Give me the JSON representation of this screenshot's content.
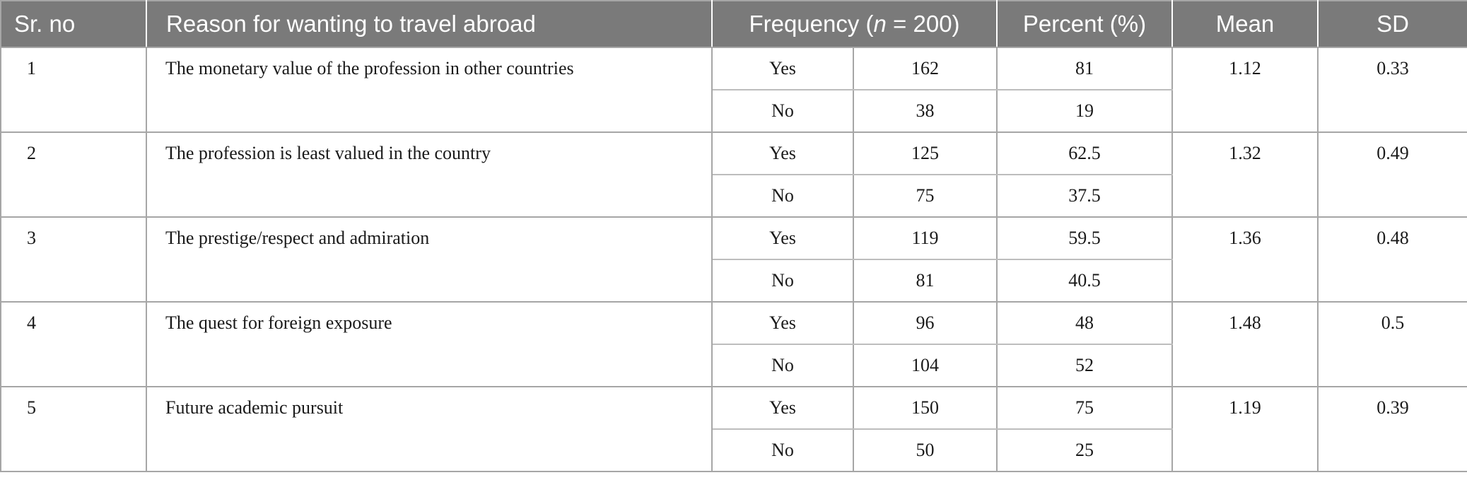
{
  "table": {
    "headers": {
      "sr_no": "Sr. no",
      "reason": "Reason for wanting to travel abroad",
      "frequency_prefix": "Frequency (",
      "frequency_n": "n",
      "frequency_suffix": " = 200)",
      "percent": "Percent (%)",
      "mean": "Mean",
      "sd": "SD"
    },
    "rows": [
      {
        "sr": "1",
        "reason": "The monetary value of the profession in other countries",
        "yes_label": "Yes",
        "yes_freq": "162",
        "yes_pct": "81",
        "no_label": "No",
        "no_freq": "38",
        "no_pct": "19",
        "mean": "1.12",
        "sd": "0.33"
      },
      {
        "sr": "2",
        "reason": "The profession is least valued in the country",
        "yes_label": "Yes",
        "yes_freq": "125",
        "yes_pct": "62.5",
        "no_label": "No",
        "no_freq": "75",
        "no_pct": "37.5",
        "mean": "1.32",
        "sd": "0.49"
      },
      {
        "sr": "3",
        "reason": "The prestige/respect and admiration",
        "yes_label": "Yes",
        "yes_freq": "119",
        "yes_pct": "59.5",
        "no_label": "No",
        "no_freq": "81",
        "no_pct": "40.5",
        "mean": "1.36",
        "sd": "0.48"
      },
      {
        "sr": "4",
        "reason": "The quest for foreign exposure",
        "yes_label": "Yes",
        "yes_freq": "96",
        "yes_pct": "48",
        "no_label": "No",
        "no_freq": "104",
        "no_pct": "52",
        "mean": "1.48",
        "sd": "0.5"
      },
      {
        "sr": "5",
        "reason": "Future academic pursuit",
        "yes_label": "Yes",
        "yes_freq": "150",
        "yes_pct": "75",
        "no_label": "No",
        "no_freq": "50",
        "no_pct": "25",
        "mean": "1.19",
        "sd": "0.39"
      }
    ]
  }
}
